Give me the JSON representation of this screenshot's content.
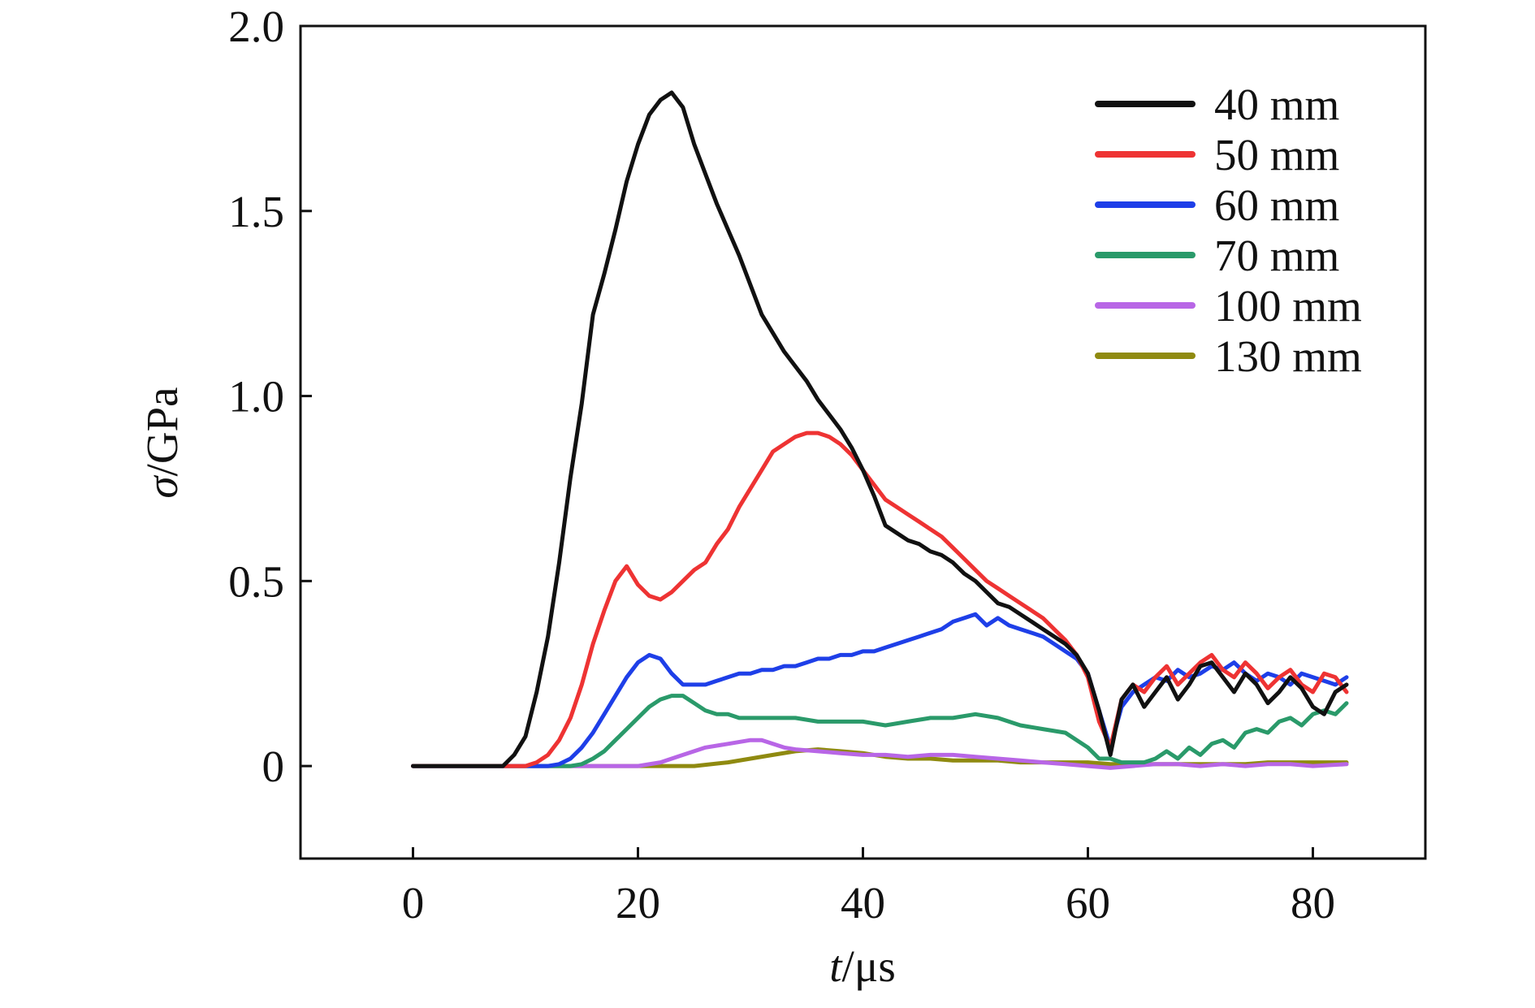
{
  "chart_data": {
    "type": "line",
    "xlabel": {
      "var": "t",
      "unit": "/μs"
    },
    "ylabel": {
      "var": "σ",
      "unit": "/GPa"
    },
    "xlim": [
      -10,
      90
    ],
    "ylim": [
      -0.25,
      2.0
    ],
    "xticks": [
      0,
      20,
      40,
      60,
      80
    ],
    "xtick_labels": [
      "0",
      "20",
      "40",
      "60",
      "80"
    ],
    "yticks": [
      0,
      0.5,
      1.0,
      1.5,
      2.0
    ],
    "ytick_labels": [
      "0",
      "0.5",
      "1.0",
      "1.5",
      "2.0"
    ],
    "grid": false,
    "legend_position": "top-right",
    "series": [
      {
        "name": "40 mm",
        "color": "#111111",
        "x": [
          0,
          8,
          9,
          10,
          11,
          12,
          13,
          14,
          15,
          16,
          17,
          18,
          19,
          20,
          21,
          22,
          23,
          24,
          25,
          26,
          27,
          28,
          29,
          30,
          31,
          32,
          33,
          34,
          35,
          36,
          37,
          38,
          39,
          40,
          41,
          42,
          43,
          44,
          45,
          46,
          47,
          48,
          49,
          50,
          51,
          52,
          53,
          54,
          55,
          56,
          57,
          58,
          59,
          60,
          61,
          62,
          63,
          64,
          65,
          66,
          67,
          68,
          69,
          70,
          71,
          72,
          73,
          74,
          75,
          76,
          77,
          78,
          79,
          80,
          81,
          82,
          83
        ],
        "y": [
          0,
          0,
          0.03,
          0.08,
          0.2,
          0.35,
          0.55,
          0.78,
          0.98,
          1.22,
          1.33,
          1.45,
          1.58,
          1.68,
          1.76,
          1.8,
          1.82,
          1.78,
          1.68,
          1.6,
          1.52,
          1.45,
          1.38,
          1.3,
          1.22,
          1.17,
          1.12,
          1.08,
          1.04,
          0.99,
          0.95,
          0.91,
          0.86,
          0.8,
          0.73,
          0.65,
          0.63,
          0.61,
          0.6,
          0.58,
          0.57,
          0.55,
          0.52,
          0.5,
          0.47,
          0.44,
          0.43,
          0.41,
          0.39,
          0.37,
          0.35,
          0.33,
          0.3,
          0.25,
          0.15,
          0.03,
          0.18,
          0.22,
          0.16,
          0.2,
          0.24,
          0.18,
          0.22,
          0.27,
          0.28,
          0.24,
          0.2,
          0.25,
          0.22,
          0.17,
          0.2,
          0.24,
          0.21,
          0.16,
          0.14,
          0.2,
          0.22
        ]
      },
      {
        "name": "50 mm",
        "color": "#ee3333",
        "x": [
          0,
          10,
          11,
          12,
          13,
          14,
          15,
          16,
          17,
          18,
          19,
          20,
          21,
          22,
          23,
          24,
          25,
          26,
          27,
          28,
          29,
          30,
          31,
          32,
          33,
          34,
          35,
          36,
          37,
          38,
          39,
          40,
          41,
          42,
          43,
          44,
          45,
          46,
          47,
          48,
          49,
          50,
          51,
          52,
          53,
          54,
          55,
          56,
          57,
          58,
          59,
          60,
          61,
          62,
          63,
          64,
          65,
          66,
          67,
          68,
          69,
          70,
          71,
          72,
          73,
          74,
          75,
          76,
          77,
          78,
          79,
          80,
          81,
          82,
          83
        ],
        "y": [
          0,
          0,
          0.01,
          0.03,
          0.07,
          0.13,
          0.22,
          0.33,
          0.42,
          0.5,
          0.54,
          0.49,
          0.46,
          0.45,
          0.47,
          0.5,
          0.53,
          0.55,
          0.6,
          0.64,
          0.7,
          0.75,
          0.8,
          0.85,
          0.87,
          0.89,
          0.9,
          0.9,
          0.89,
          0.87,
          0.84,
          0.8,
          0.76,
          0.72,
          0.7,
          0.68,
          0.66,
          0.64,
          0.62,
          0.59,
          0.56,
          0.53,
          0.5,
          0.48,
          0.46,
          0.44,
          0.42,
          0.4,
          0.37,
          0.34,
          0.3,
          0.24,
          0.12,
          0.05,
          0.18,
          0.22,
          0.2,
          0.24,
          0.27,
          0.22,
          0.25,
          0.28,
          0.3,
          0.26,
          0.24,
          0.28,
          0.25,
          0.21,
          0.24,
          0.26,
          0.22,
          0.2,
          0.25,
          0.24,
          0.2
        ]
      },
      {
        "name": "60 mm",
        "color": "#1e3fe8",
        "x": [
          0,
          12,
          13,
          14,
          15,
          16,
          17,
          18,
          19,
          20,
          21,
          22,
          23,
          24,
          25,
          26,
          27,
          28,
          29,
          30,
          31,
          32,
          33,
          34,
          35,
          36,
          37,
          38,
          39,
          40,
          41,
          42,
          43,
          44,
          45,
          46,
          47,
          48,
          49,
          50,
          51,
          52,
          53,
          54,
          55,
          56,
          57,
          58,
          59,
          60,
          61,
          62,
          63,
          64,
          65,
          66,
          67,
          68,
          69,
          70,
          71,
          72,
          73,
          74,
          75,
          76,
          77,
          78,
          79,
          80,
          81,
          82,
          83
        ],
        "y": [
          0,
          0,
          0.005,
          0.02,
          0.05,
          0.09,
          0.14,
          0.19,
          0.24,
          0.28,
          0.3,
          0.29,
          0.25,
          0.22,
          0.22,
          0.22,
          0.23,
          0.24,
          0.25,
          0.25,
          0.26,
          0.26,
          0.27,
          0.27,
          0.28,
          0.29,
          0.29,
          0.3,
          0.3,
          0.31,
          0.31,
          0.32,
          0.33,
          0.34,
          0.35,
          0.36,
          0.37,
          0.39,
          0.4,
          0.41,
          0.38,
          0.4,
          0.38,
          0.37,
          0.36,
          0.35,
          0.33,
          0.31,
          0.29,
          0.25,
          0.15,
          0.05,
          0.16,
          0.2,
          0.22,
          0.24,
          0.23,
          0.26,
          0.24,
          0.25,
          0.27,
          0.26,
          0.28,
          0.25,
          0.23,
          0.25,
          0.24,
          0.22,
          0.25,
          0.24,
          0.23,
          0.22,
          0.24
        ]
      },
      {
        "name": "70 mm",
        "color": "#2a9a6a",
        "x": [
          0,
          14,
          15,
          16,
          17,
          18,
          19,
          20,
          21,
          22,
          23,
          24,
          25,
          26,
          27,
          28,
          29,
          30,
          32,
          34,
          36,
          38,
          40,
          42,
          44,
          46,
          48,
          50,
          52,
          54,
          56,
          58,
          60,
          61,
          62,
          63,
          64,
          65,
          66,
          67,
          68,
          69,
          70,
          71,
          72,
          73,
          74,
          75,
          76,
          77,
          78,
          79,
          80,
          81,
          82,
          83
        ],
        "y": [
          0,
          0,
          0.005,
          0.02,
          0.04,
          0.07,
          0.1,
          0.13,
          0.16,
          0.18,
          0.19,
          0.19,
          0.17,
          0.15,
          0.14,
          0.14,
          0.13,
          0.13,
          0.13,
          0.13,
          0.12,
          0.12,
          0.12,
          0.11,
          0.12,
          0.13,
          0.13,
          0.14,
          0.13,
          0.11,
          0.1,
          0.09,
          0.05,
          0.02,
          0.02,
          0.01,
          0.01,
          0.01,
          0.02,
          0.04,
          0.02,
          0.05,
          0.03,
          0.06,
          0.07,
          0.05,
          0.09,
          0.1,
          0.09,
          0.12,
          0.13,
          0.11,
          0.14,
          0.15,
          0.14,
          0.17
        ]
      },
      {
        "name": "100 mm",
        "color": "#b866e6",
        "x": [
          0,
          20,
          22,
          24,
          26,
          28,
          30,
          31,
          32,
          33,
          34,
          36,
          38,
          40,
          42,
          44,
          46,
          48,
          50,
          52,
          54,
          56,
          58,
          60,
          62,
          64,
          66,
          68,
          70,
          72,
          74,
          76,
          78,
          80,
          83
        ],
        "y": [
          0,
          0,
          0.01,
          0.03,
          0.05,
          0.06,
          0.07,
          0.07,
          0.06,
          0.05,
          0.045,
          0.04,
          0.035,
          0.03,
          0.03,
          0.025,
          0.03,
          0.03,
          0.025,
          0.02,
          0.015,
          0.01,
          0.005,
          0,
          -0.005,
          0,
          0.005,
          0.005,
          0,
          0.005,
          0,
          0.005,
          0.005,
          0,
          0.005
        ]
      },
      {
        "name": "130 mm",
        "color": "#8f8a10",
        "x": [
          0,
          25,
          28,
          30,
          32,
          34,
          36,
          38,
          40,
          42,
          44,
          46,
          48,
          50,
          52,
          54,
          56,
          58,
          60,
          62,
          64,
          66,
          68,
          70,
          72,
          74,
          76,
          78,
          80,
          83
        ],
        "y": [
          0,
          0,
          0.01,
          0.02,
          0.03,
          0.04,
          0.045,
          0.04,
          0.035,
          0.025,
          0.02,
          0.02,
          0.015,
          0.015,
          0.015,
          0.01,
          0.01,
          0.01,
          0.01,
          0.005,
          0.005,
          0.005,
          0.005,
          0.005,
          0.005,
          0.005,
          0.01,
          0.01,
          0.01,
          0.01
        ]
      }
    ]
  }
}
